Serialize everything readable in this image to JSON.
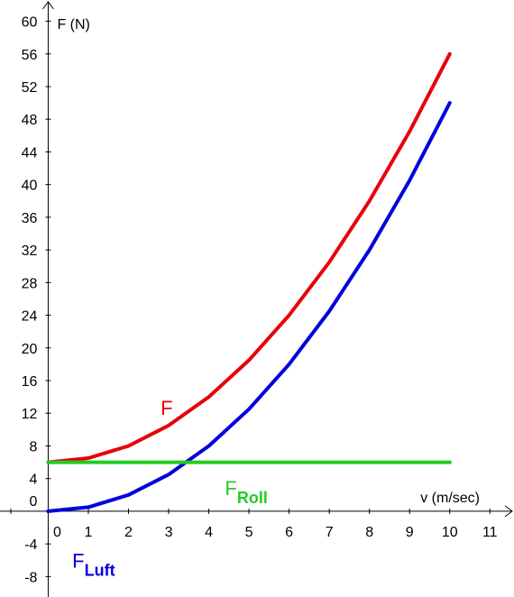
{
  "chart_data": {
    "type": "line",
    "title": "",
    "xlabel": "v (m/sec)",
    "ylabel": "F (N)",
    "xlim": [
      -1.2,
      11.6
    ],
    "ylim": [
      -10.5,
      62.6
    ],
    "x_ticks": [
      "0",
      "1",
      "2",
      "3",
      "4",
      "5",
      "6",
      "7",
      "8",
      "9",
      "10",
      "11"
    ],
    "y_ticks": [
      "-8",
      "-4",
      "0",
      "4",
      "8",
      "12",
      "16",
      "20",
      "24",
      "28",
      "32",
      "36",
      "40",
      "44",
      "48",
      "52",
      "56",
      "60"
    ],
    "grid": false,
    "legend": "none",
    "series": [
      {
        "name": "F",
        "color": "#e8000b",
        "x": [
          0,
          1,
          2,
          3,
          4,
          5,
          6,
          7,
          8,
          9,
          10
        ],
        "values": [
          6,
          6.5,
          8,
          10.5,
          14,
          18.5,
          24,
          30.5,
          38,
          46.5,
          56
        ]
      },
      {
        "name": "F",
        "subscript": "Luft",
        "color": "#0000dd",
        "x": [
          0,
          1,
          2,
          3,
          4,
          5,
          6,
          7,
          8,
          9,
          10
        ],
        "values": [
          0,
          0.5,
          2,
          4.5,
          8,
          12.5,
          18,
          24.5,
          32,
          40.5,
          50
        ]
      },
      {
        "name": "F",
        "subscript": "Roll",
        "color": "#22cc22",
        "x": [
          0,
          10
        ],
        "values": [
          6,
          6
        ]
      }
    ]
  }
}
